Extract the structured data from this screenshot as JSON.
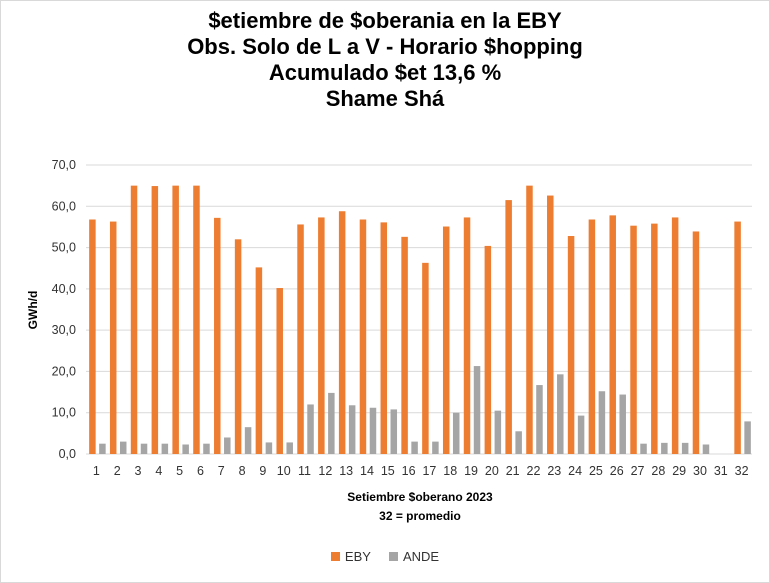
{
  "chart_data": {
    "type": "bar",
    "title_lines": [
      "$etiembre de $oberania en la EBY",
      "Obs. Solo de L a V - Horario $hopping",
      "Acumulado $et 13,6 %",
      "Shame Shá"
    ],
    "xlabel": "Setiembre $oberano 2023",
    "xlabel_sub": "32 = promedio",
    "ylabel": "GWh/d",
    "ylim": [
      0,
      70
    ],
    "yticks": [
      "0,0",
      "10,0",
      "20,0",
      "30,0",
      "40,0",
      "50,0",
      "60,0",
      "70,0"
    ],
    "ytick_values": [
      0,
      10,
      20,
      30,
      40,
      50,
      60,
      70
    ],
    "grid": true,
    "legend_position": "bottom",
    "categories": [
      "1",
      "2",
      "3",
      "4",
      "5",
      "6",
      "7",
      "8",
      "9",
      "10",
      "11",
      "12",
      "13",
      "14",
      "15",
      "16",
      "17",
      "18",
      "19",
      "20",
      "21",
      "22",
      "23",
      "24",
      "25",
      "26",
      "27",
      "28",
      "29",
      "30",
      "31",
      "32"
    ],
    "series": [
      {
        "name": "EBY",
        "color": "#ed7d31",
        "values": [
          56.8,
          56.3,
          65.0,
          64.9,
          65.0,
          65.0,
          57.2,
          52.0,
          45.2,
          40.2,
          55.6,
          57.3,
          58.8,
          56.8,
          56.1,
          52.6,
          46.3,
          55.1,
          57.3,
          50.4,
          61.5,
          65.0,
          62.6,
          52.8,
          56.8,
          57.8,
          55.3,
          55.8,
          57.3,
          53.9,
          0,
          56.3
        ]
      },
      {
        "name": "ANDE",
        "color": "#a5a5a5",
        "values": [
          2.5,
          3.0,
          2.5,
          2.5,
          2.3,
          2.5,
          4.0,
          6.5,
          2.8,
          2.8,
          12.0,
          14.8,
          11.8,
          11.2,
          10.8,
          3.0,
          3.0,
          10.0,
          21.3,
          10.5,
          5.5,
          16.7,
          19.3,
          9.3,
          15.2,
          14.4,
          2.5,
          2.7,
          2.7,
          2.3,
          0,
          7.9
        ]
      }
    ]
  }
}
